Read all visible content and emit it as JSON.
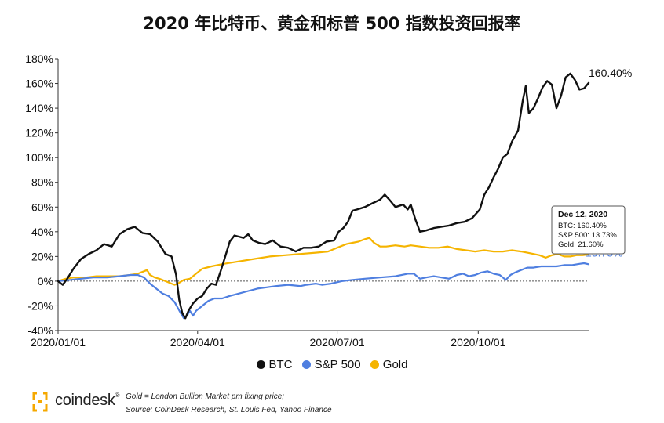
{
  "title": "2020 年比特币、黄金和标普 500 指数投资回报率",
  "legend": [
    {
      "label": "BTC",
      "color": "#111111"
    },
    {
      "label": "S&P 500",
      "color": "#4f7fe0"
    },
    {
      "label": "Gold",
      "color": "#f5b400"
    }
  ],
  "end_labels": {
    "btc": "160.40%",
    "spx": "13.73%"
  },
  "tooltip": {
    "date": "Dec 12, 2020",
    "lines": [
      "BTC: 160.40%",
      "S&P 500: 13.73%",
      "Gold: 21.60%"
    ]
  },
  "footer": {
    "brand": "coindesk",
    "brand_mark": "®",
    "note_line1": "Gold = London Bullion Market pm fixing price;",
    "note_line2": "Source: CoinDesk Research, St. Louis Fed, Yahoo Finance"
  },
  "chart_data": {
    "type": "line",
    "x_tick_labels": [
      "2020/01/01",
      "2020/04/01",
      "2020/07/01",
      "2020/10/01"
    ],
    "x_tick_days": [
      0,
      91,
      182,
      274
    ],
    "x_range_days": [
      0,
      346
    ],
    "y_tick_labels": [
      "-40%",
      "-20%",
      "0%",
      "20%",
      "40%",
      "60%",
      "80%",
      "100%",
      "120%",
      "140%",
      "160%",
      "180%"
    ],
    "ylim": [
      -40,
      180
    ],
    "reference_line": 0,
    "series": [
      {
        "name": "BTC",
        "color": "#111111",
        "points": [
          [
            0,
            0
          ],
          [
            3,
            -3
          ],
          [
            6,
            2
          ],
          [
            10,
            10
          ],
          [
            15,
            18
          ],
          [
            20,
            22
          ],
          [
            25,
            25
          ],
          [
            30,
            30
          ],
          [
            35,
            28
          ],
          [
            40,
            38
          ],
          [
            45,
            42
          ],
          [
            50,
            44
          ],
          [
            55,
            39
          ],
          [
            60,
            38
          ],
          [
            65,
            32
          ],
          [
            70,
            22
          ],
          [
            74,
            20
          ],
          [
            77,
            5
          ],
          [
            79,
            -15
          ],
          [
            81,
            -26
          ],
          [
            83,
            -30
          ],
          [
            85,
            -24
          ],
          [
            88,
            -18
          ],
          [
            91,
            -14
          ],
          [
            94,
            -12
          ],
          [
            97,
            -6
          ],
          [
            100,
            -2
          ],
          [
            103,
            -3
          ],
          [
            106,
            8
          ],
          [
            109,
            20
          ],
          [
            112,
            32
          ],
          [
            115,
            37
          ],
          [
            118,
            36
          ],
          [
            121,
            35
          ],
          [
            124,
            38
          ],
          [
            127,
            33
          ],
          [
            131,
            31
          ],
          [
            135,
            30
          ],
          [
            140,
            33
          ],
          [
            145,
            28
          ],
          [
            150,
            27
          ],
          [
            155,
            24
          ],
          [
            160,
            27
          ],
          [
            165,
            27
          ],
          [
            170,
            28
          ],
          [
            175,
            32
          ],
          [
            180,
            33
          ],
          [
            183,
            40
          ],
          [
            186,
            43
          ],
          [
            189,
            48
          ],
          [
            192,
            57
          ],
          [
            195,
            58
          ],
          [
            200,
            60
          ],
          [
            205,
            63
          ],
          [
            210,
            66
          ],
          [
            213,
            70
          ],
          [
            216,
            66
          ],
          [
            220,
            60
          ],
          [
            225,
            62
          ],
          [
            228,
            58
          ],
          [
            230,
            62
          ],
          [
            233,
            50
          ],
          [
            236,
            40
          ],
          [
            240,
            41
          ],
          [
            245,
            43
          ],
          [
            250,
            44
          ],
          [
            255,
            45
          ],
          [
            260,
            47
          ],
          [
            265,
            48
          ],
          [
            270,
            51
          ],
          [
            275,
            58
          ],
          [
            278,
            70
          ],
          [
            281,
            76
          ],
          [
            284,
            84
          ],
          [
            287,
            91
          ],
          [
            290,
            100
          ],
          [
            293,
            103
          ],
          [
            296,
            113
          ],
          [
            300,
            122
          ],
          [
            303,
            146
          ],
          [
            305,
            158
          ],
          [
            307,
            136
          ],
          [
            310,
            140
          ],
          [
            313,
            148
          ],
          [
            316,
            157
          ],
          [
            319,
            162
          ],
          [
            322,
            159
          ],
          [
            325,
            140
          ],
          [
            328,
            150
          ],
          [
            331,
            165
          ],
          [
            334,
            168
          ],
          [
            337,
            163
          ],
          [
            340,
            155
          ],
          [
            343,
            156
          ],
          [
            346,
            160.4
          ]
        ]
      },
      {
        "name": "S&P 500",
        "color": "#4f7fe0",
        "points": [
          [
            0,
            0
          ],
          [
            8,
            1
          ],
          [
            15,
            2
          ],
          [
            23,
            3
          ],
          [
            32,
            3
          ],
          [
            40,
            4
          ],
          [
            47,
            5
          ],
          [
            52,
            5
          ],
          [
            56,
            3
          ],
          [
            60,
            -2
          ],
          [
            64,
            -6
          ],
          [
            68,
            -10
          ],
          [
            72,
            -12
          ],
          [
            76,
            -17
          ],
          [
            80,
            -26
          ],
          [
            82,
            -30
          ],
          [
            84,
            -28
          ],
          [
            86,
            -24
          ],
          [
            88,
            -28
          ],
          [
            90,
            -24
          ],
          [
            94,
            -20
          ],
          [
            98,
            -16
          ],
          [
            102,
            -14
          ],
          [
            107,
            -14
          ],
          [
            112,
            -12
          ],
          [
            118,
            -10
          ],
          [
            124,
            -8
          ],
          [
            130,
            -6
          ],
          [
            136,
            -5
          ],
          [
            142,
            -4
          ],
          [
            150,
            -3
          ],
          [
            158,
            -4
          ],
          [
            162,
            -3
          ],
          [
            168,
            -2
          ],
          [
            172,
            -3
          ],
          [
            178,
            -2
          ],
          [
            185,
            0
          ],
          [
            192,
            1
          ],
          [
            200,
            2
          ],
          [
            210,
            3
          ],
          [
            220,
            4
          ],
          [
            228,
            6
          ],
          [
            232,
            6
          ],
          [
            236,
            2
          ],
          [
            240,
            3
          ],
          [
            245,
            4
          ],
          [
            250,
            3
          ],
          [
            255,
            2
          ],
          [
            260,
            5
          ],
          [
            264,
            6
          ],
          [
            268,
            4
          ],
          [
            272,
            5
          ],
          [
            276,
            7
          ],
          [
            280,
            8
          ],
          [
            284,
            6
          ],
          [
            288,
            5
          ],
          [
            290,
            3
          ],
          [
            292,
            1
          ],
          [
            295,
            5
          ],
          [
            298,
            7
          ],
          [
            302,
            9
          ],
          [
            306,
            11
          ],
          [
            310,
            11
          ],
          [
            315,
            12
          ],
          [
            320,
            12
          ],
          [
            325,
            12
          ],
          [
            330,
            13
          ],
          [
            335,
            13
          ],
          [
            340,
            14
          ],
          [
            343,
            14.5
          ],
          [
            346,
            13.73
          ]
        ]
      },
      {
        "name": "Gold",
        "color": "#f5b400",
        "points": [
          [
            0,
            0
          ],
          [
            5,
            2
          ],
          [
            10,
            3
          ],
          [
            18,
            3
          ],
          [
            25,
            4
          ],
          [
            32,
            4
          ],
          [
            40,
            4
          ],
          [
            47,
            5
          ],
          [
            52,
            6
          ],
          [
            56,
            8
          ],
          [
            58,
            9
          ],
          [
            60,
            5
          ],
          [
            63,
            3
          ],
          [
            66,
            2
          ],
          [
            70,
            0
          ],
          [
            74,
            -2
          ],
          [
            76,
            -3
          ],
          [
            78,
            -2
          ],
          [
            82,
            1
          ],
          [
            86,
            2
          ],
          [
            90,
            6
          ],
          [
            94,
            10
          ],
          [
            100,
            12
          ],
          [
            108,
            14
          ],
          [
            118,
            16
          ],
          [
            128,
            18
          ],
          [
            138,
            20
          ],
          [
            148,
            21
          ],
          [
            158,
            22
          ],
          [
            168,
            23
          ],
          [
            176,
            24
          ],
          [
            180,
            26
          ],
          [
            184,
            28
          ],
          [
            188,
            30
          ],
          [
            192,
            31
          ],
          [
            196,
            32
          ],
          [
            200,
            34
          ],
          [
            203,
            35
          ],
          [
            206,
            31
          ],
          [
            210,
            28
          ],
          [
            214,
            28
          ],
          [
            220,
            29
          ],
          [
            226,
            28
          ],
          [
            230,
            29
          ],
          [
            236,
            28
          ],
          [
            242,
            27
          ],
          [
            248,
            27
          ],
          [
            254,
            28
          ],
          [
            260,
            26
          ],
          [
            266,
            25
          ],
          [
            272,
            24
          ],
          [
            278,
            25
          ],
          [
            284,
            24
          ],
          [
            290,
            24
          ],
          [
            296,
            25
          ],
          [
            302,
            24
          ],
          [
            306,
            23
          ],
          [
            310,
            22
          ],
          [
            314,
            21
          ],
          [
            318,
            19
          ],
          [
            322,
            21
          ],
          [
            326,
            22
          ],
          [
            330,
            20
          ],
          [
            334,
            20
          ],
          [
            338,
            21
          ],
          [
            342,
            21
          ],
          [
            346,
            21.6
          ]
        ]
      }
    ]
  }
}
